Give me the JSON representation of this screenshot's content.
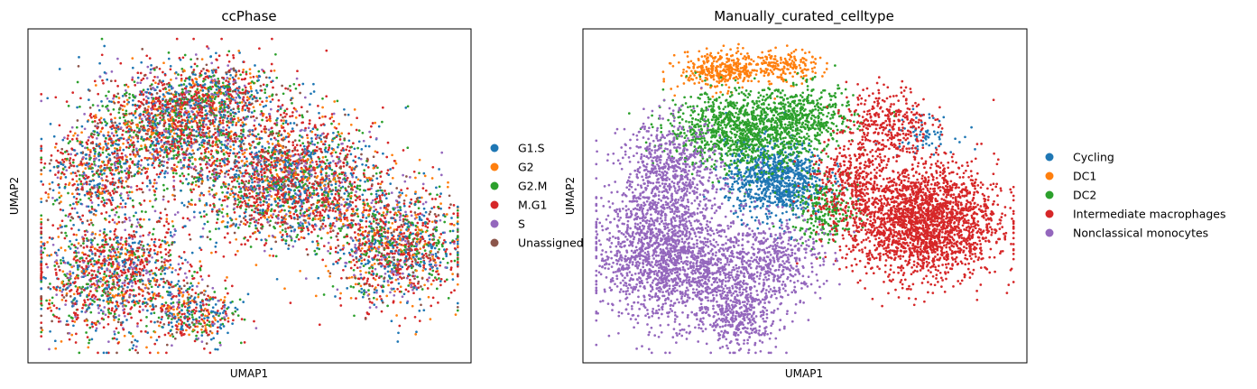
{
  "chart_data": [
    {
      "type": "scatter",
      "title": "ccPhase",
      "xlabel": "UMAP1",
      "ylabel": "UMAP2",
      "legend_position": "right",
      "grid": false,
      "ticks": false,
      "series": [
        {
          "name": "G1.S",
          "color": "#1f77b4"
        },
        {
          "name": "G2",
          "color": "#ff7f0e"
        },
        {
          "name": "G2.M",
          "color": "#2ca02c"
        },
        {
          "name": "M.G1",
          "color": "#d62728"
        },
        {
          "name": "S",
          "color": "#9467bd"
        },
        {
          "name": "Unassigned",
          "color": "#8c564b"
        }
      ],
      "clusters": [
        {
          "x": 0.3,
          "y": 0.72,
          "sx": 0.1,
          "sy": 0.09,
          "n": 1500
        },
        {
          "x": 0.17,
          "y": 0.25,
          "sx": 0.1,
          "sy": 0.1,
          "n": 1400
        },
        {
          "x": 0.37,
          "y": 0.12,
          "sx": 0.05,
          "sy": 0.05,
          "n": 350
        },
        {
          "x": 0.85,
          "y": 0.34,
          "sx": 0.08,
          "sy": 0.09,
          "n": 1300
        },
        {
          "x": 0.58,
          "y": 0.58,
          "sx": 0.12,
          "sy": 0.1,
          "n": 1500
        },
        {
          "x": 0.13,
          "y": 0.57,
          "sx": 0.06,
          "sy": 0.07,
          "n": 500
        },
        {
          "x": 0.42,
          "y": 0.82,
          "sx": 0.07,
          "sy": 0.06,
          "n": 600
        },
        {
          "x": 0.6,
          "y": 0.5,
          "sx": 0.1,
          "sy": 0.08,
          "n": 800
        }
      ],
      "mix": [
        0.2,
        0.12,
        0.16,
        0.34,
        0.1,
        0.08
      ]
    },
    {
      "type": "scatter",
      "title": "Manually_curated_celltype",
      "xlabel": "UMAP1",
      "ylabel": "UMAP2",
      "legend_position": "right",
      "grid": false,
      "ticks": false,
      "series": [
        {
          "name": "Cycling",
          "color": "#1f77b4",
          "clusters": [
            {
              "x": 0.43,
              "y": 0.55,
              "sx": 0.06,
              "sy": 0.06,
              "n": 900
            },
            {
              "x": 0.78,
              "y": 0.7,
              "sx": 0.04,
              "sy": 0.03,
              "n": 70
            }
          ]
        },
        {
          "name": "DC1",
          "color": "#ff7f0e",
          "clusters": [
            {
              "x": 0.3,
              "y": 0.9,
              "sx": 0.05,
              "sy": 0.03,
              "n": 350
            },
            {
              "x": 0.45,
              "y": 0.91,
              "sx": 0.04,
              "sy": 0.025,
              "n": 180
            }
          ]
        },
        {
          "name": "DC2",
          "color": "#2ca02c",
          "clusters": [
            {
              "x": 0.35,
              "y": 0.71,
              "sx": 0.09,
              "sy": 0.06,
              "n": 1100
            },
            {
              "x": 0.5,
              "y": 0.75,
              "sx": 0.06,
              "sy": 0.05,
              "n": 400
            },
            {
              "x": 0.55,
              "y": 0.45,
              "sx": 0.04,
              "sy": 0.05,
              "n": 250
            }
          ]
        },
        {
          "name": "Intermediate macrophages",
          "color": "#d62728",
          "clusters": [
            {
              "x": 0.78,
              "y": 0.42,
              "sx": 0.09,
              "sy": 0.09,
              "n": 2300
            },
            {
              "x": 0.7,
              "y": 0.73,
              "sx": 0.05,
              "sy": 0.06,
              "n": 350
            },
            {
              "x": 0.61,
              "y": 0.55,
              "sx": 0.05,
              "sy": 0.06,
              "n": 300
            }
          ]
        },
        {
          "name": "Nonclassical monocytes",
          "color": "#9467bd",
          "clusters": [
            {
              "x": 0.16,
              "y": 0.32,
              "sx": 0.08,
              "sy": 0.11,
              "n": 1600
            },
            {
              "x": 0.18,
              "y": 0.58,
              "sx": 0.06,
              "sy": 0.08,
              "n": 600
            },
            {
              "x": 0.42,
              "y": 0.3,
              "sx": 0.06,
              "sy": 0.07,
              "n": 500
            },
            {
              "x": 0.34,
              "y": 0.11,
              "sx": 0.05,
              "sy": 0.05,
              "n": 380
            },
            {
              "x": 0.28,
              "y": 0.25,
              "sx": 0.05,
              "sy": 0.05,
              "n": 300
            }
          ]
        }
      ]
    }
  ]
}
